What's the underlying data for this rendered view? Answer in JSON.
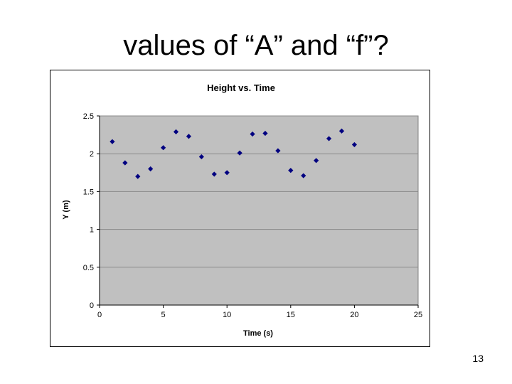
{
  "slide": {
    "title": "values of “A” and “f”?",
    "page_number": "13"
  },
  "colors": {
    "plot_background": "#c0c0c0",
    "marker": "#000080",
    "gridline": "#8a8a8a"
  },
  "chart_data": {
    "type": "scatter",
    "title": "Height vs. Time",
    "xlabel": "Time (s)",
    "ylabel": "Y (m)",
    "xlim": [
      0,
      25
    ],
    "ylim": [
      0,
      2.5
    ],
    "xticks": [
      0,
      5,
      10,
      15,
      20,
      25
    ],
    "yticks": [
      0,
      0.5,
      1,
      1.5,
      2,
      2.5
    ],
    "xtick_labels": [
      "0",
      "5",
      "10",
      "15",
      "20",
      "25"
    ],
    "ytick_labels": [
      "0",
      "0.5",
      "1",
      "1.5",
      "2",
      "2.5"
    ],
    "grid": "horizontal",
    "legend": "none",
    "marker": "diamond",
    "x": [
      1,
      2,
      3,
      4,
      5,
      6,
      7,
      8,
      9,
      10,
      11,
      12,
      13,
      14,
      15,
      16,
      17,
      18,
      19,
      20
    ],
    "y": [
      2.16,
      1.88,
      1.7,
      1.8,
      2.08,
      2.29,
      2.23,
      1.96,
      1.73,
      1.75,
      2.01,
      2.26,
      2.27,
      2.04,
      1.78,
      1.71,
      1.91,
      2.2,
      2.3,
      2.12
    ]
  }
}
